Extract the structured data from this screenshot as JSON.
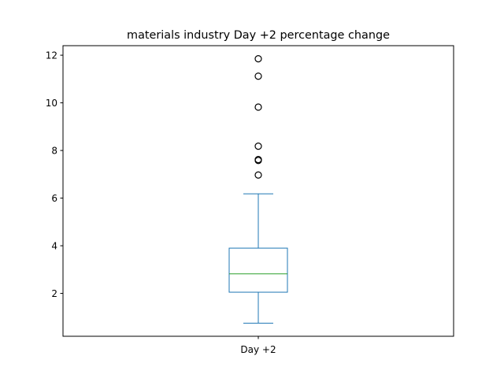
{
  "chart_data": {
    "type": "box",
    "title": "materials industry Day +2 percentage change",
    "xlabel": "",
    "ylabel": "",
    "categories": [
      "Day +2"
    ],
    "ylim": [
      0.2,
      12.4
    ],
    "yticks": [
      2,
      4,
      6,
      8,
      10,
      12
    ],
    "ytick_labels": [
      "2",
      "4",
      "6",
      "8",
      "10",
      "12"
    ],
    "grid": false,
    "series": [
      {
        "whisker_low": 0.75,
        "q1": 2.05,
        "median": 2.82,
        "q3": 3.9,
        "whisker_high": 6.18,
        "outliers": [
          11.85,
          11.12,
          9.82,
          8.18,
          7.62,
          7.58,
          6.97
        ]
      }
    ],
    "colors": {
      "box": "#1f77b4",
      "median": "#2ca02c",
      "outlier_edge": "#000000",
      "axes": "#000000"
    }
  }
}
